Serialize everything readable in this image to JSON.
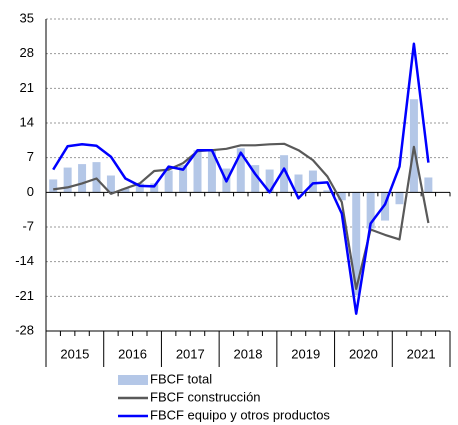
{
  "chart_data": {
    "type": "bar-line",
    "categories": [
      "2015",
      "2016",
      "2017",
      "2018",
      "2019",
      "2020",
      "2021"
    ],
    "ylim": [
      -28,
      35
    ],
    "yticks": [
      35,
      28,
      21,
      14,
      7,
      0,
      -7,
      -14,
      -21,
      -28
    ],
    "grid": true,
    "series": [
      {
        "name": "FBCF total",
        "type": "bar",
        "color": "#b4c7e7",
        "values": [
          [
            2.6,
            5.0,
            5.7,
            6.1
          ],
          [
            3.4,
            0.8,
            1.8,
            1.8
          ],
          [
            4.4,
            5.5,
            8.5,
            8.5
          ],
          [
            4.8,
            8.9,
            5.5,
            4.6
          ],
          [
            7.5,
            3.6,
            4.4,
            0.4
          ],
          [
            -1.6,
            -20.8,
            -7.3,
            -5.7
          ],
          [
            -2.4,
            18.8,
            3.0,
            null
          ]
        ]
      },
      {
        "name": "FBCF construcción",
        "type": "line",
        "color": "#595959",
        "values": [
          [
            0.6,
            1.0,
            1.8,
            2.8
          ],
          [
            -0.3,
            0.8,
            1.8,
            4.3
          ],
          [
            4.6,
            5.9,
            8.3,
            8.5
          ],
          [
            8.8,
            9.5,
            9.5,
            9.7
          ],
          [
            9.8,
            8.5,
            6.5,
            3.2
          ],
          [
            -2.0,
            -19.5,
            -7.5,
            -8.6
          ],
          [
            -9.5,
            9.2,
            -6.2,
            null
          ]
        ]
      },
      {
        "name": "FBCF equipo y otros productos",
        "type": "line",
        "color": "#0000ff",
        "values": [
          [
            4.6,
            9.3,
            9.7,
            9.4
          ],
          [
            7.2,
            2.8,
            1.3,
            1.2
          ],
          [
            5.2,
            4.6,
            8.5,
            8.5
          ],
          [
            2.2,
            8.0,
            3.7,
            0.0
          ],
          [
            4.8,
            -1.2,
            1.8,
            2.0
          ],
          [
            -4.3,
            -24.5,
            -6.3,
            -2.4
          ],
          [
            5.2,
            30.0,
            6.0,
            null
          ]
        ]
      }
    ]
  }
}
